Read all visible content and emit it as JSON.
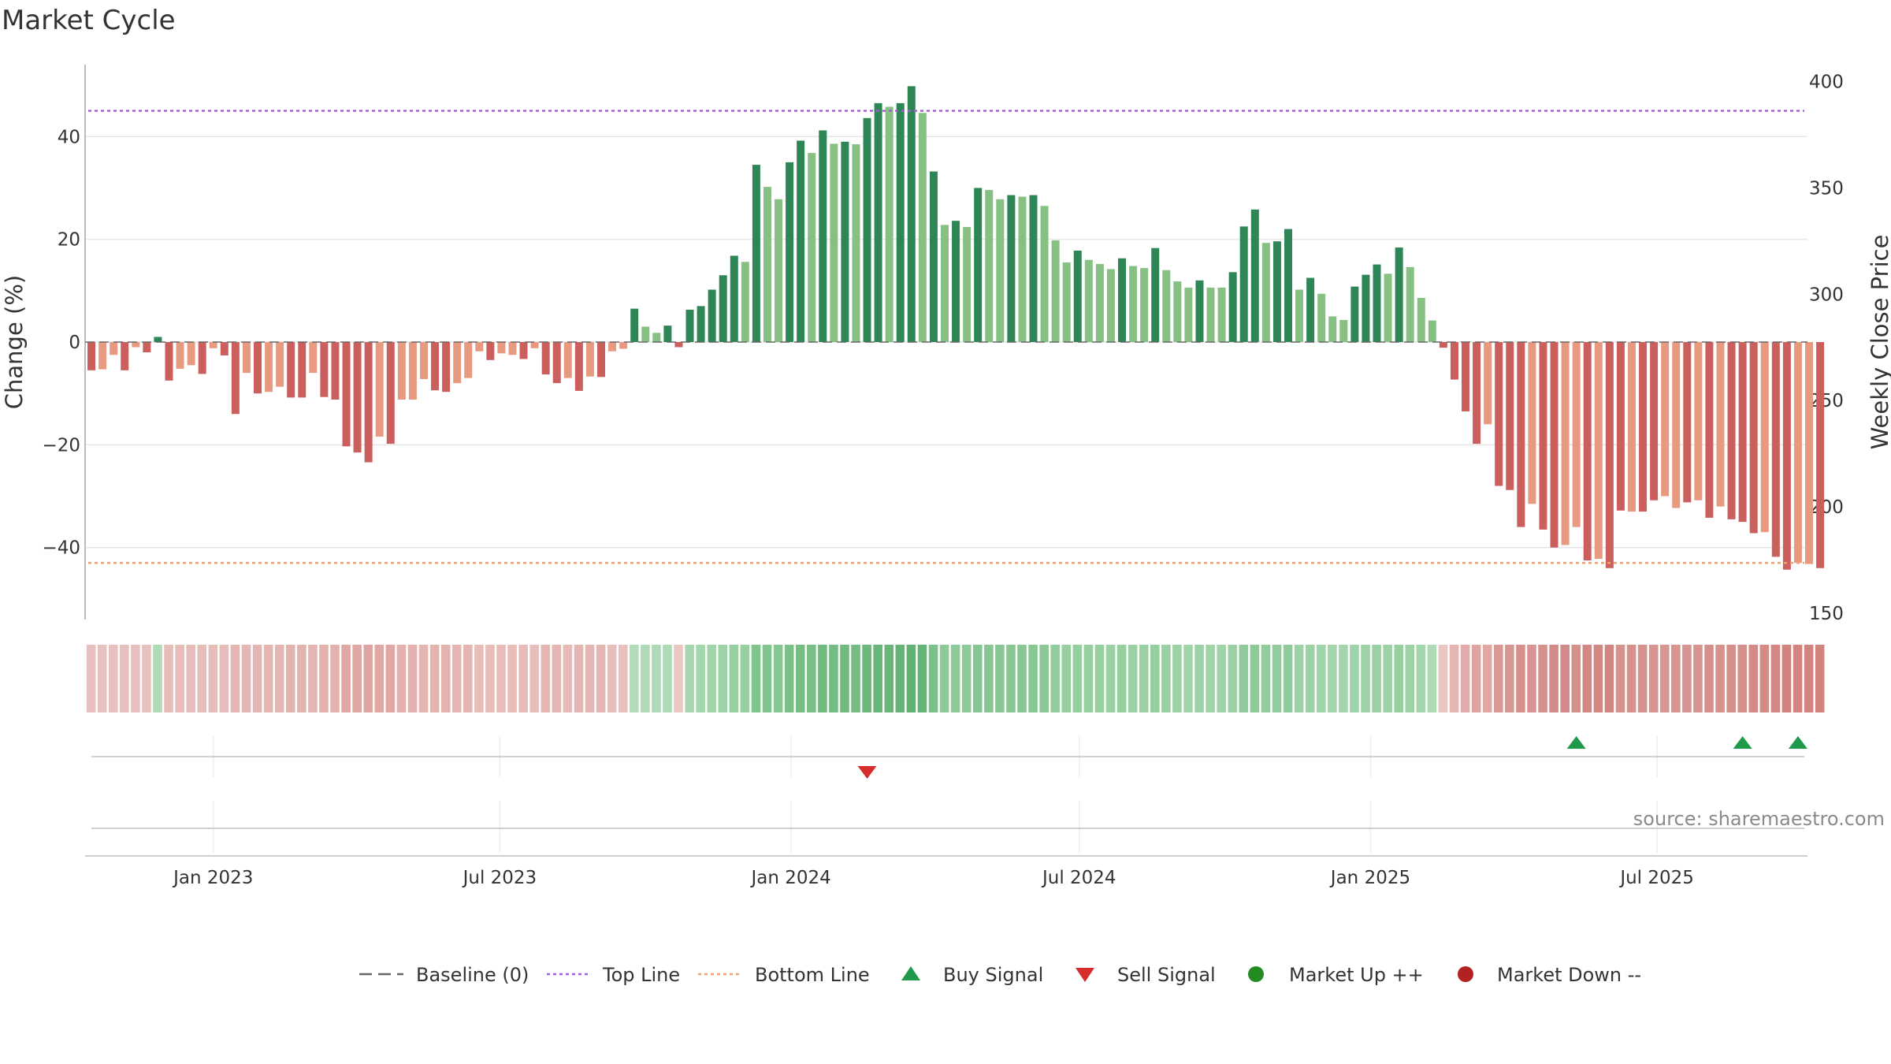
{
  "title": "Market Cycle",
  "source": "source: sharemaestro.com",
  "colors": {
    "green_strong": "#2e8656",
    "green_light": "#86c183",
    "red_strong": "#cb5f5e",
    "red_light": "#e79a7f",
    "top_line": "#a55dd6",
    "bottom_line": "#f0a070",
    "baseline": "#666666",
    "buy": "#1e9a4a",
    "sell": "#d62c2c",
    "market_up": "#228b22",
    "market_down": "#b22222"
  },
  "legend": [
    {
      "key": "baseline",
      "label": "Baseline (0)",
      "symbol": "dash",
      "color": "#666666"
    },
    {
      "key": "top",
      "label": "Top Line",
      "symbol": "dots",
      "color": "#a55dd6"
    },
    {
      "key": "bottom",
      "label": "Bottom Line",
      "symbol": "dots",
      "color": "#f0a070"
    },
    {
      "key": "buy",
      "label": "Buy Signal",
      "symbol": "triangle-up",
      "color": "#1e9a4a"
    },
    {
      "key": "sell",
      "label": "Sell Signal",
      "symbol": "triangle-down",
      "color": "#d62c2c"
    },
    {
      "key": "up",
      "label": "Market Up ++",
      "symbol": "circle",
      "color": "#228b22"
    },
    {
      "key": "down",
      "label": "Market Down --",
      "symbol": "circle",
      "color": "#b22222"
    }
  ],
  "chart_data": {
    "type": "bar",
    "title": "Market Cycle",
    "ylabel": "Change (%)",
    "y2label": "Weekly Close Price",
    "ylim": [
      -54,
      54
    ],
    "y_ticks": [
      -40,
      -20,
      0,
      20,
      40
    ],
    "y2lim": [
      147,
      408
    ],
    "y2_ticks": [
      150,
      200,
      250,
      300,
      350,
      400
    ],
    "x_range": [
      "2022-10-12",
      "2025-10-04"
    ],
    "x_ticks": [
      {
        "date": "2023-01-01",
        "label": "Jan 2023"
      },
      {
        "date": "2023-07-01",
        "label": "Jul 2023"
      },
      {
        "date": "2024-01-01",
        "label": "Jan 2024"
      },
      {
        "date": "2024-07-01",
        "label": "Jul 2024"
      },
      {
        "date": "2025-01-01",
        "label": "Jan 2025"
      },
      {
        "date": "2025-07-01",
        "label": "Jul 2025"
      }
    ],
    "start_date": "2022-10-16",
    "top_line": 45,
    "bottom_line": -43,
    "baseline": 0,
    "values": [
      -5.5,
      -5.3,
      -2.5,
      -5.5,
      -1,
      -2,
      1,
      -7.5,
      -5.2,
      -4.5,
      -6.2,
      -1.2,
      -2.6,
      -14,
      -6,
      -10,
      -9.7,
      -8.7,
      -10.8,
      -10.8,
      -6,
      -10.7,
      -11.2,
      -20.3,
      -21.5,
      -23.4,
      -18.4,
      -19.8,
      -11.2,
      -11.2,
      -7.2,
      -9.4,
      -9.7,
      -8,
      -7,
      -1.8,
      -3.5,
      -2.2,
      -2.5,
      -3.3,
      -1.2,
      -6.3,
      -8,
      -7,
      -9.5,
      -6.7,
      -6.8,
      -1.8,
      -1.3,
      6.5,
      3,
      1.8,
      3.2,
      -1,
      6.3,
      7,
      10.2,
      13,
      16.8,
      15.6,
      34.5,
      30.2,
      27.8,
      35,
      39.2,
      36.8,
      41.2,
      38.6,
      39,
      38.5,
      43.6,
      46.5,
      45.8,
      46.5,
      49.8,
      44.6,
      33.2,
      22.8,
      23.6,
      22.4,
      30,
      29.6,
      27.8,
      28.6,
      28.3,
      28.6,
      26.5,
      19.8,
      15.5,
      17.8,
      16,
      15.2,
      14.2,
      16.3,
      14.8,
      14.4,
      18.3,
      14,
      11.8,
      10.6,
      12,
      10.6,
      10.6,
      13.6,
      22.5,
      25.8,
      19.3,
      19.6,
      22,
      10.2,
      12.5,
      9.4,
      5,
      4.3,
      10.8,
      13.1,
      15.1,
      13.3,
      18.4,
      14.6,
      8.6,
      4.2,
      -1.1,
      -7.3,
      -13.5,
      -19.8,
      -16,
      -28,
      -28.8,
      -36,
      -31.5,
      -36.5,
      -40,
      -39.5,
      -36,
      -42.5,
      -42.2,
      -44,
      -32.8,
      -33,
      -33,
      -30.8,
      -30,
      -32.3,
      -31.2,
      -30.8,
      -34.2,
      -32,
      -34.5,
      -35,
      -37.2,
      -37,
      -41.8,
      -44.3,
      -43,
      -43.2,
      -44
    ],
    "strength": [
      "sr",
      "lr",
      "lr",
      "sr",
      "lr",
      "sr",
      "sg",
      "sr",
      "lr",
      "lr",
      "sr",
      "lr",
      "sr",
      "sr",
      "lr",
      "sr",
      "lr",
      "lr",
      "sr",
      "sr",
      "lr",
      "sr",
      "sr",
      "sr",
      "sr",
      "sr",
      "lr",
      "sr",
      "lr",
      "lr",
      "lr",
      "sr",
      "sr",
      "lr",
      "lr",
      "lr",
      "sr",
      "lr",
      "lr",
      "sr",
      "lr",
      "sr",
      "sr",
      "lr",
      "sr",
      "lr",
      "sr",
      "lr",
      "lr",
      "sg",
      "lg",
      "lg",
      "sg",
      "sr",
      "sg",
      "sg",
      "sg",
      "sg",
      "sg",
      "lg",
      "sg",
      "lg",
      "lg",
      "sg",
      "sg",
      "lg",
      "sg",
      "lg",
      "sg",
      "lg",
      "sg",
      "sg",
      "lg",
      "sg",
      "sg",
      "lg",
      "sg",
      "lg",
      "sg",
      "lg",
      "sg",
      "lg",
      "lg",
      "sg",
      "lg",
      "sg",
      "lg",
      "lg",
      "lg",
      "sg",
      "lg",
      "lg",
      "lg",
      "sg",
      "lg",
      "lg",
      "sg",
      "lg",
      "lg",
      "lg",
      "sg",
      "lg",
      "lg",
      "sg",
      "sg",
      "sg",
      "lg",
      "sg",
      "sg",
      "lg",
      "sg",
      "lg",
      "lg",
      "lg",
      "sg",
      "sg",
      "sg",
      "lg",
      "sg",
      "lg",
      "lg",
      "lg",
      "sr",
      "sr",
      "sr",
      "sr",
      "lr",
      "sr",
      "sr",
      "sr",
      "lr",
      "sr",
      "sr",
      "lr",
      "lr",
      "sr",
      "lr",
      "sr",
      "sr",
      "lr",
      "sr",
      "sr",
      "lr",
      "lr",
      "sr",
      "lr",
      "sr",
      "lr",
      "sr",
      "sr",
      "sr",
      "lr",
      "sr",
      "sr",
      "lr",
      "lr",
      "sr"
    ],
    "heat_strip": [
      0.18,
      0.18,
      0.18,
      0.18,
      0.18,
      0.18,
      0.2,
      0.22,
      0.22,
      0.22,
      0.22,
      0.22,
      0.22,
      0.28,
      0.26,
      0.28,
      0.28,
      0.28,
      0.3,
      0.3,
      0.28,
      0.32,
      0.32,
      0.4,
      0.4,
      0.42,
      0.4,
      0.4,
      0.32,
      0.32,
      0.28,
      0.3,
      0.3,
      0.28,
      0.28,
      0.22,
      0.22,
      0.22,
      0.22,
      0.22,
      0.2,
      0.26,
      0.26,
      0.24,
      0.28,
      0.26,
      0.26,
      0.2,
      0.18,
      0.18,
      0.2,
      0.2,
      0.2,
      0.12,
      0.26,
      0.28,
      0.3,
      0.34,
      0.38,
      0.38,
      0.55,
      0.55,
      0.52,
      0.6,
      0.65,
      0.62,
      0.68,
      0.66,
      0.68,
      0.66,
      0.72,
      0.76,
      0.75,
      0.78,
      0.82,
      0.78,
      0.6,
      0.46,
      0.46,
      0.46,
      0.52,
      0.5,
      0.5,
      0.5,
      0.5,
      0.5,
      0.48,
      0.42,
      0.38,
      0.4,
      0.38,
      0.38,
      0.36,
      0.38,
      0.36,
      0.36,
      0.4,
      0.36,
      0.34,
      0.32,
      0.34,
      0.32,
      0.32,
      0.36,
      0.44,
      0.46,
      0.42,
      0.42,
      0.44,
      0.34,
      0.34,
      0.32,
      0.28,
      0.28,
      0.32,
      0.34,
      0.36,
      0.34,
      0.38,
      0.34,
      0.28,
      0.2,
      0.12,
      0.28,
      0.36,
      0.44,
      0.4,
      0.55,
      0.56,
      0.62,
      0.58,
      0.62,
      0.66,
      0.66,
      0.62,
      0.7,
      0.7,
      0.72,
      0.6,
      0.6,
      0.6,
      0.58,
      0.56,
      0.58,
      0.58,
      0.58,
      0.62,
      0.6,
      0.62,
      0.62,
      0.66,
      0.66,
      0.7,
      0.74,
      0.72,
      0.72,
      0.74
    ],
    "buy_signals": [
      "2025-05-11",
      "2025-08-24",
      "2025-09-28"
    ],
    "sell_signals": [
      "2024-02-18"
    ],
    "market_up": [],
    "market_down": []
  }
}
